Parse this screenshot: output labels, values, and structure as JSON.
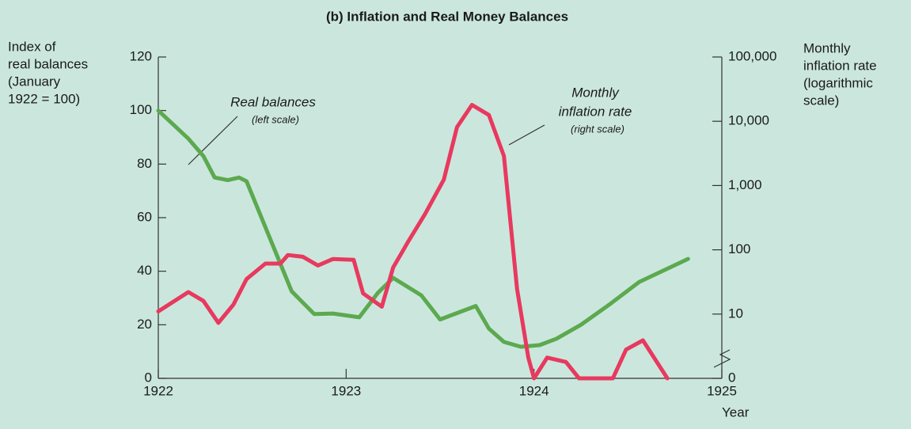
{
  "chart_data": {
    "type": "line",
    "title": "(b) Inflation and Real Money Balances",
    "x_label": "Year",
    "y_label": [
      "Index of",
      "real balances",
      "(January",
      "1922 = 100)"
    ],
    "y2_label": [
      "Monthly",
      "inflation rate",
      "(logarithmic",
      "scale)"
    ],
    "xlim": [
      1922,
      1925
    ],
    "xticks": [
      1922,
      1923,
      1924,
      1925
    ],
    "ylim": [
      0,
      120
    ],
    "yticks": [
      0,
      20,
      40,
      60,
      80,
      100,
      120
    ],
    "y2lim": [
      1,
      100000
    ],
    "y2log": true,
    "y2break": true,
    "y2ticks": [
      0,
      10,
      100,
      {
        "value": 1000,
        "label": "1,000"
      },
      {
        "value": 10000,
        "label": "10,000"
      },
      {
        "value": 100000,
        "label": "100,000"
      }
    ],
    "annotations": [
      {
        "lines": [
          "Real balances"
        ],
        "note": "(left scale)"
      },
      {
        "lines": [
          "Monthly",
          "inflation rate"
        ],
        "note": "(right scale)"
      }
    ],
    "series": [
      {
        "name": "Real balances",
        "color": "#5ca94f",
        "axis": "y",
        "x": [
          1922.0,
          1922.16,
          1922.24,
          1922.3,
          1922.37,
          1922.43,
          1922.47,
          1922.71,
          1922.83,
          1922.93,
          1923.07,
          1923.17,
          1923.25,
          1923.4,
          1923.5,
          1923.69,
          1923.76,
          1923.84,
          1923.93,
          1924.03,
          1924.12,
          1924.25,
          1924.4,
          1924.56,
          1924.82
        ],
        "values": [
          100,
          89.5,
          83,
          75,
          74,
          75,
          73.6,
          32.5,
          24,
          24.2,
          22.8,
          32,
          37.5,
          31,
          22,
          27,
          18.6,
          13.6,
          11.8,
          12.4,
          14.8,
          20,
          27.5,
          36,
          44.6
        ]
      },
      {
        "name": "Monthly inflation rate",
        "color": "#e8395f",
        "axis": "y2",
        "x": [
          1922.0,
          1922.16,
          1922.24,
          1922.32,
          1922.4,
          1922.47,
          1922.57,
          1922.65,
          1922.69,
          1922.77,
          1922.85,
          1922.93,
          1923.04,
          1923.09,
          1923.19,
          1923.25,
          1923.33,
          1923.42,
          1923.52,
          1923.59,
          1923.67,
          1923.76,
          1923.84,
          1923.91,
          1923.97,
          1924.0,
          1924.07,
          1924.17,
          1924.24,
          1924.42,
          1924.49,
          1924.58,
          1924.71
        ],
        "values": [
          11,
          22,
          16,
          7.3,
          14,
          35,
          61,
          61,
          83,
          78,
          57,
          72,
          70,
          21,
          13,
          53,
          134,
          360,
          1230,
          8100,
          18000,
          12500,
          2870,
          24.5,
          2.1,
          0,
          2.1,
          1.8,
          0,
          0,
          2.8,
          3.9,
          0
        ]
      }
    ]
  }
}
